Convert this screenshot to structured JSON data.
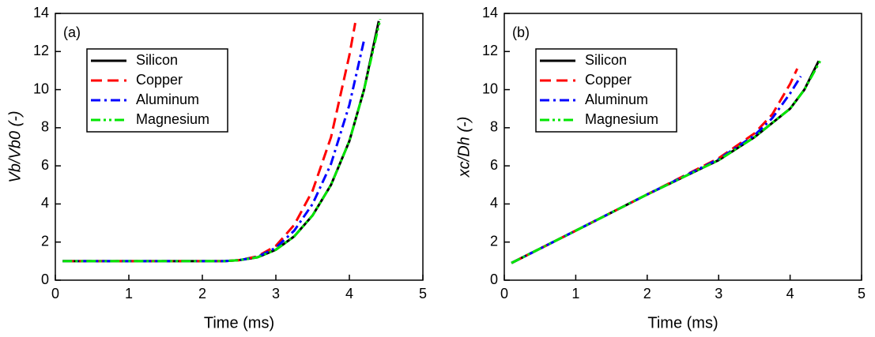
{
  "chart_data": [
    {
      "type": "line",
      "annotation": "(a)",
      "xlabel": "Time (ms)",
      "ylabel": "Vb/Vb0 (-)",
      "xlim": [
        0,
        5
      ],
      "xticks": [
        0,
        1,
        2,
        3,
        4,
        5
      ],
      "ylim": [
        0,
        14
      ],
      "yticks": [
        0,
        2,
        4,
        6,
        8,
        10,
        12,
        14
      ],
      "legend": "upper left",
      "series": [
        {
          "name": "Silicon",
          "color": "#000000",
          "style": "solid",
          "x": [
            0.1,
            1,
            2,
            2.3,
            2.5,
            2.75,
            3.0,
            3.25,
            3.5,
            3.75,
            4.0,
            4.2,
            4.4
          ],
          "values": [
            1,
            1,
            1,
            1,
            1.05,
            1.2,
            1.6,
            2.3,
            3.4,
            5,
            7.3,
            10,
            13.6
          ]
        },
        {
          "name": "Copper",
          "color": "#ff0000",
          "style": "dash",
          "x": [
            0.1,
            1,
            2,
            2.3,
            2.5,
            2.75,
            3.0,
            3.25,
            3.5,
            3.75,
            4.0,
            4.08
          ],
          "values": [
            1,
            1,
            1,
            1,
            1.05,
            1.25,
            1.8,
            2.9,
            4.7,
            7.5,
            11.8,
            13.5
          ]
        },
        {
          "name": "Aluminum",
          "color": "#0000ff",
          "style": "dashdot",
          "x": [
            0.1,
            1,
            2,
            2.3,
            2.5,
            2.75,
            3.0,
            3.25,
            3.5,
            3.75,
            4.0,
            4.2
          ],
          "values": [
            1,
            1,
            1,
            1,
            1.05,
            1.22,
            1.7,
            2.6,
            4.0,
            6.1,
            9.2,
            12.6
          ]
        },
        {
          "name": "Magnesium",
          "color": "#00e600",
          "style": "dashdotdot",
          "x": [
            0.1,
            1,
            2,
            2.3,
            2.5,
            2.75,
            3.0,
            3.25,
            3.5,
            3.75,
            4.0,
            4.2,
            4.42
          ],
          "values": [
            1,
            1,
            1,
            1,
            1.05,
            1.2,
            1.6,
            2.3,
            3.4,
            5,
            7.3,
            10,
            13.7
          ]
        }
      ]
    },
    {
      "type": "line",
      "annotation": "(b)",
      "xlabel": "Time (ms)",
      "ylabel": "xc/Dh (-)",
      "xlim": [
        0,
        5
      ],
      "xticks": [
        0,
        1,
        2,
        3,
        4,
        5
      ],
      "ylim": [
        0,
        14
      ],
      "yticks": [
        0,
        2,
        4,
        6,
        8,
        10,
        12,
        14
      ],
      "legend": "upper left",
      "series": [
        {
          "name": "Silicon",
          "color": "#000000",
          "style": "solid",
          "x": [
            0.1,
            1,
            2,
            3,
            3.5,
            4.0,
            4.2,
            4.4
          ],
          "values": [
            0.9,
            2.6,
            4.5,
            6.3,
            7.5,
            9.0,
            10.0,
            11.5
          ]
        },
        {
          "name": "Copper",
          "color": "#ff0000",
          "style": "dash",
          "x": [
            0.1,
            1,
            2,
            3,
            3.5,
            3.75,
            4.0,
            4.1
          ],
          "values": [
            0.9,
            2.6,
            4.5,
            6.4,
            7.7,
            8.7,
            10.3,
            11.1
          ]
        },
        {
          "name": "Aluminum",
          "color": "#0000ff",
          "style": "dashdot",
          "x": [
            0.1,
            1,
            2,
            3,
            3.5,
            3.75,
            4.0,
            4.15
          ],
          "values": [
            0.9,
            2.6,
            4.5,
            6.35,
            7.6,
            8.5,
            9.8,
            10.7
          ]
        },
        {
          "name": "Magnesium",
          "color": "#00e600",
          "style": "dashdotdot",
          "x": [
            0.1,
            1,
            2,
            3,
            3.5,
            4.0,
            4.2,
            4.42
          ],
          "values": [
            0.9,
            2.6,
            4.5,
            6.3,
            7.5,
            9.0,
            10.0,
            11.5
          ]
        }
      ]
    }
  ]
}
